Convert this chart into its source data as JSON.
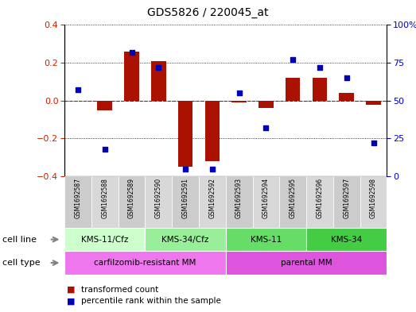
{
  "title": "GDS5826 / 220045_at",
  "samples": [
    "GSM1692587",
    "GSM1692588",
    "GSM1692589",
    "GSM1692590",
    "GSM1692591",
    "GSM1692592",
    "GSM1692593",
    "GSM1692594",
    "GSM1692595",
    "GSM1692596",
    "GSM1692597",
    "GSM1692598"
  ],
  "transformed_count": [
    0.0,
    -0.05,
    0.26,
    0.21,
    -0.35,
    -0.32,
    -0.01,
    -0.04,
    0.12,
    0.12,
    0.04,
    -0.02
  ],
  "percentile_rank": [
    57,
    18,
    82,
    72,
    5,
    5,
    55,
    32,
    77,
    72,
    65,
    22
  ],
  "cell_line_groups": [
    {
      "label": "KMS-11/Cfz",
      "start": 0,
      "end": 3,
      "color": "#ccffcc"
    },
    {
      "label": "KMS-34/Cfz",
      "start": 3,
      "end": 6,
      "color": "#99ee99"
    },
    {
      "label": "KMS-11",
      "start": 6,
      "end": 9,
      "color": "#66dd66"
    },
    {
      "label": "KMS-34",
      "start": 9,
      "end": 12,
      "color": "#44cc44"
    }
  ],
  "cell_type_groups": [
    {
      "label": "carfilzomib-resistant MM",
      "start": 0,
      "end": 6,
      "color": "#ee77ee"
    },
    {
      "label": "parental MM",
      "start": 6,
      "end": 12,
      "color": "#dd55dd"
    }
  ],
  "ylim_left": [
    -0.4,
    0.4
  ],
  "ylim_right": [
    0,
    100
  ],
  "yticks_left": [
    -0.4,
    -0.2,
    0.0,
    0.2,
    0.4
  ],
  "yticks_right": [
    0,
    25,
    50,
    75,
    100
  ],
  "bar_color": "#aa1100",
  "dot_color": "#0000bb",
  "background_color": "#ffffff",
  "zero_line_color": "#cc0000",
  "legend_items": [
    "transformed count",
    "percentile rank within the sample"
  ],
  "sample_box_colors": [
    "#cccccc",
    "#d8d8d8",
    "#cccccc",
    "#d8d8d8",
    "#cccccc",
    "#d8d8d8",
    "#cccccc",
    "#d8d8d8",
    "#cccccc",
    "#d8d8d8",
    "#cccccc",
    "#d8d8d8"
  ]
}
